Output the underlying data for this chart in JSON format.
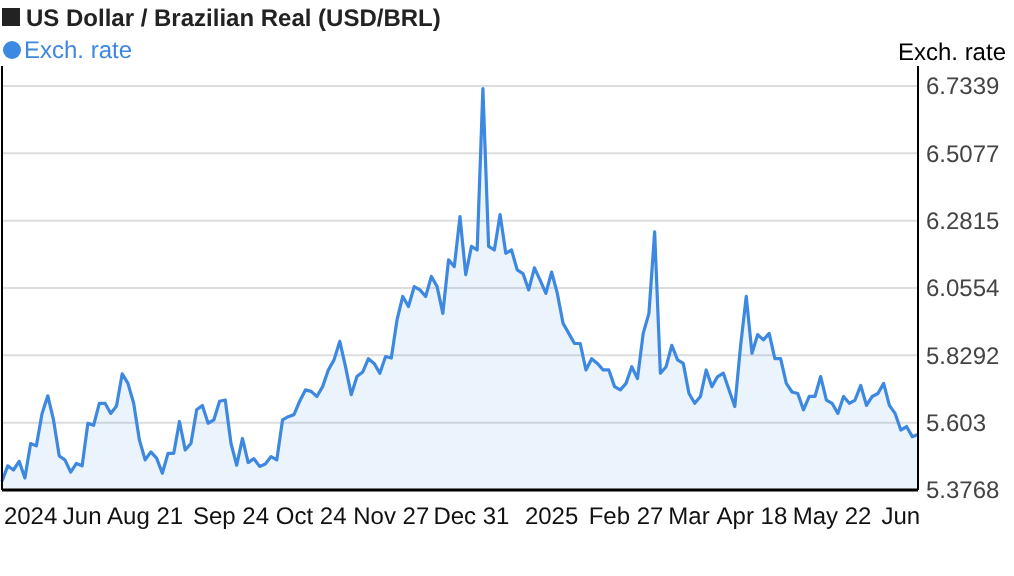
{
  "chart_data": {
    "type": "area",
    "title": "US Dollar / Brazilian Real (USD/BRL)",
    "ylabel": "Exch. rate",
    "legend": "top left",
    "grid": "y",
    "ylim": [
      5.3768,
      6.7339
    ],
    "yticks": [
      5.3768,
      5.603,
      5.8292,
      6.0554,
      6.2815,
      6.5077,
      6.7339
    ],
    "categories": [
      null,
      null,
      null,
      null,
      null,
      "2024",
      null,
      null,
      null,
      null,
      null,
      null,
      null,
      null,
      "Jun",
      null,
      null,
      null,
      null,
      null,
      null,
      null,
      null,
      null,
      null,
      "Aug 21",
      null,
      null,
      null,
      null,
      null,
      null,
      null,
      null,
      null,
      null,
      null,
      null,
      null,
      null,
      "Sep 24",
      null,
      null,
      null,
      null,
      null,
      null,
      null,
      null,
      null,
      null,
      null,
      null,
      null,
      "Oct 24",
      null,
      null,
      null,
      null,
      null,
      null,
      null,
      null,
      null,
      null,
      null,
      null,
      null,
      "Nov 27",
      null,
      null,
      null,
      null,
      null,
      null,
      null,
      null,
      null,
      null,
      null,
      null,
      null,
      "Dec 31",
      null,
      null,
      null,
      null,
      null,
      null,
      null,
      null,
      null,
      null,
      null,
      null,
      null,
      "2025",
      null,
      null,
      null,
      null,
      null,
      null,
      null,
      null,
      null,
      null,
      null,
      null,
      "Feb 27",
      null,
      null,
      null,
      null,
      null,
      null,
      null,
      null,
      null,
      null,
      "Mar",
      null,
      null,
      null,
      null,
      null,
      null,
      null,
      null,
      null,
      null,
      "Apr 18",
      null,
      null,
      null,
      null,
      null,
      null,
      null,
      null,
      null,
      null,
      null,
      null,
      null,
      "May 22",
      null,
      null,
      null,
      null,
      null,
      null,
      null,
      null,
      null,
      null,
      null,
      "Jun",
      null,
      null,
      null
    ],
    "series": [
      {
        "name": "Exch. rate",
        "color": "#3d88e0",
        "values": [
          5.406,
          5.458,
          5.444,
          5.473,
          5.417,
          5.533,
          5.525,
          5.634,
          5.693,
          5.612,
          5.491,
          5.478,
          5.437,
          5.466,
          5.458,
          5.601,
          5.594,
          5.668,
          5.668,
          5.634,
          5.659,
          5.767,
          5.735,
          5.668,
          5.545,
          5.478,
          5.505,
          5.484,
          5.433,
          5.5,
          5.5,
          5.607,
          5.511,
          5.533,
          5.646,
          5.661,
          5.601,
          5.612,
          5.675,
          5.679,
          5.533,
          5.46,
          5.55,
          5.469,
          5.482,
          5.456,
          5.464,
          5.489,
          5.478,
          5.612,
          5.623,
          5.63,
          5.675,
          5.713,
          5.708,
          5.691,
          5.724,
          5.78,
          5.814,
          5.876,
          5.791,
          5.697,
          5.758,
          5.773,
          5.818,
          5.802,
          5.769,
          5.825,
          5.82,
          5.948,
          6.027,
          5.993,
          6.06,
          6.049,
          6.027,
          6.094,
          6.06,
          5.97,
          6.15,
          6.127,
          6.295,
          6.1,
          6.195,
          6.183,
          6.725,
          6.195,
          6.183,
          6.302,
          6.172,
          6.183,
          6.116,
          6.104,
          6.049,
          6.123,
          6.082,
          6.037,
          6.109,
          6.037,
          5.937,
          5.903,
          5.869,
          5.869,
          5.78,
          5.818,
          5.802,
          5.78,
          5.78,
          5.724,
          5.713,
          5.735,
          5.791,
          5.751,
          5.903,
          5.97,
          6.244,
          5.769,
          5.791,
          5.863,
          5.814,
          5.802,
          5.701,
          5.668,
          5.691,
          5.78,
          5.724,
          5.758,
          5.769,
          5.713,
          5.657,
          5.859,
          6.027,
          5.836,
          5.899,
          5.881,
          5.903,
          5.818,
          5.818,
          5.735,
          5.706,
          5.701,
          5.646,
          5.691,
          5.691,
          5.758,
          5.679,
          5.668,
          5.634,
          5.691,
          5.668,
          5.679,
          5.728,
          5.661,
          5.691,
          5.701,
          5.735,
          5.661,
          5.634,
          5.578,
          5.59,
          5.556,
          5.563
        ]
      }
    ]
  }
}
